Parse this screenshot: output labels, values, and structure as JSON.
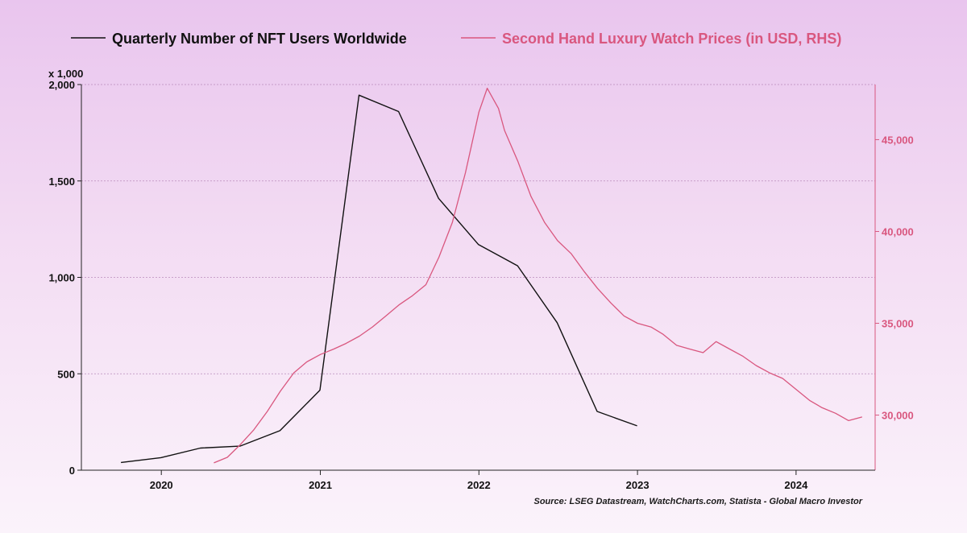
{
  "chart_data": {
    "type": "line",
    "legend": "top",
    "grid": true,
    "x_axis": {
      "range": [
        "2019-07-01",
        "2024-07-01"
      ],
      "tick_labels": [
        "2020",
        "2021",
        "2022",
        "2023",
        "2024"
      ]
    },
    "y_axis_left": {
      "unit_label": "x 1,000",
      "range": [
        0,
        2000
      ],
      "ticks": [
        0,
        500,
        1000,
        1500,
        2000
      ],
      "tick_labels": [
        "0",
        "500",
        "1,000",
        "1,500",
        "2,000"
      ]
    },
    "y_axis_right": {
      "range": [
        27000,
        48000
      ],
      "ticks": [
        30000,
        35000,
        40000,
        45000
      ],
      "tick_labels": [
        "30,000",
        "35,000",
        "40,000",
        "45,000"
      ]
    },
    "series": [
      {
        "name": "Quarterly Number of NFT Users Worldwide",
        "axis": "left",
        "color": "#111111",
        "points": [
          [
            "2019-09-30",
            40
          ],
          [
            "2019-12-31",
            65
          ],
          [
            "2020-03-31",
            115
          ],
          [
            "2020-06-30",
            125
          ],
          [
            "2020-09-30",
            205
          ],
          [
            "2020-12-31",
            415
          ],
          [
            "2021-03-31",
            1945
          ],
          [
            "2021-06-30",
            1860
          ],
          [
            "2021-09-30",
            1410
          ],
          [
            "2021-12-31",
            1170
          ],
          [
            "2022-03-31",
            1060
          ],
          [
            "2022-06-30",
            765
          ],
          [
            "2022-09-30",
            305
          ],
          [
            "2022-12-31",
            230
          ]
        ]
      },
      {
        "name": "Second Hand Luxury Watch Prices (in USD, RHS)",
        "axis": "right",
        "color": "#d9577f",
        "points": [
          [
            "2020-05-01",
            27400
          ],
          [
            "2020-06-01",
            27700
          ],
          [
            "2020-07-01",
            28400
          ],
          [
            "2020-08-01",
            29200
          ],
          [
            "2020-09-01",
            30200
          ],
          [
            "2020-10-01",
            31300
          ],
          [
            "2020-11-01",
            32300
          ],
          [
            "2020-12-01",
            32900
          ],
          [
            "2021-01-01",
            33300
          ],
          [
            "2021-02-01",
            33600
          ],
          [
            "2021-03-01",
            33900
          ],
          [
            "2021-04-01",
            34300
          ],
          [
            "2021-05-01",
            34800
          ],
          [
            "2021-06-01",
            35400
          ],
          [
            "2021-07-01",
            36000
          ],
          [
            "2021-08-01",
            36500
          ],
          [
            "2021-09-01",
            37100
          ],
          [
            "2021-10-01",
            38600
          ],
          [
            "2021-11-01",
            40500
          ],
          [
            "2021-12-01",
            43200
          ],
          [
            "2022-01-01",
            46500
          ],
          [
            "2022-01-20",
            47800
          ],
          [
            "2022-02-15",
            46700
          ],
          [
            "2022-03-01",
            45500
          ],
          [
            "2022-04-01",
            43800
          ],
          [
            "2022-05-01",
            41900
          ],
          [
            "2022-06-01",
            40500
          ],
          [
            "2022-07-01",
            39500
          ],
          [
            "2022-08-01",
            38800
          ],
          [
            "2022-09-01",
            37800
          ],
          [
            "2022-10-01",
            36900
          ],
          [
            "2022-11-01",
            36100
          ],
          [
            "2022-12-01",
            35400
          ],
          [
            "2023-01-01",
            35000
          ],
          [
            "2023-02-01",
            34800
          ],
          [
            "2023-03-01",
            34400
          ],
          [
            "2023-04-01",
            33800
          ],
          [
            "2023-05-01",
            33600
          ],
          [
            "2023-06-01",
            33400
          ],
          [
            "2023-07-01",
            34000
          ],
          [
            "2023-08-01",
            33600
          ],
          [
            "2023-09-01",
            33200
          ],
          [
            "2023-10-01",
            32700
          ],
          [
            "2023-11-01",
            32300
          ],
          [
            "2023-12-01",
            32000
          ],
          [
            "2024-01-01",
            31400
          ],
          [
            "2024-02-01",
            30800
          ],
          [
            "2024-03-01",
            30400
          ],
          [
            "2024-04-01",
            30100
          ],
          [
            "2024-05-01",
            29700
          ],
          [
            "2024-06-01",
            29900
          ]
        ]
      }
    ]
  },
  "source_note": "Source: LSEG Datastream, WatchCharts.com, Statista - Global Macro Investor"
}
